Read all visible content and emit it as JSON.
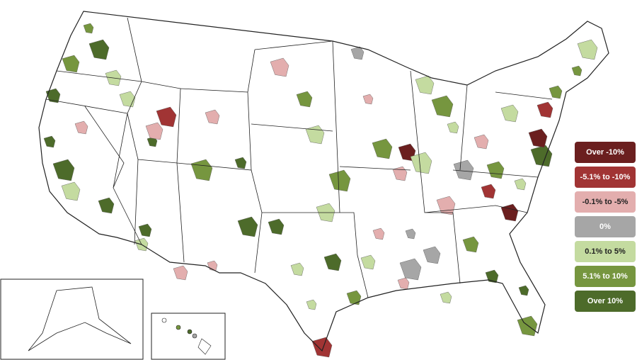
{
  "map": {
    "type": "choropleth",
    "region": "United States metropolitan areas",
    "insets": [
      "Alaska",
      "Hawaii"
    ]
  },
  "legend": [
    {
      "label": "Over -10%",
      "color": "#6b1f1f"
    },
    {
      "label": "-5.1% to -10%",
      "color": "#a13434"
    },
    {
      "label": "-0.1% to -5%",
      "color": "#e3aeae"
    },
    {
      "label": "0%",
      "color": "#a6a6a6"
    },
    {
      "label": "0.1% to 5%",
      "color": "#c4dba0"
    },
    {
      "label": "5.1% to 10%",
      "color": "#76963f"
    },
    {
      "label": "Over 10%",
      "color": "#4d6b2a"
    }
  ]
}
